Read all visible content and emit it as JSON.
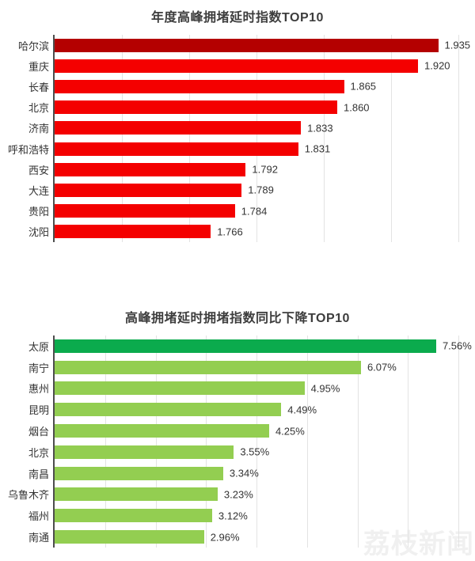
{
  "watermark": "荔枝新闻",
  "chart_data": [
    {
      "type": "bar",
      "orientation": "horizontal",
      "title": "年度高峰拥堵延时指数TOP10",
      "categories": [
        "哈尔滨",
        "重庆",
        "长春",
        "北京",
        "济南",
        "呼和浩特",
        "西安",
        "大连",
        "贵阳",
        "沈阳"
      ],
      "values": [
        1.935,
        1.92,
        1.865,
        1.86,
        1.833,
        1.831,
        1.792,
        1.789,
        1.784,
        1.766
      ],
      "value_labels": [
        "1.935",
        "1.920",
        "1.865",
        "1.860",
        "1.833",
        "1.831",
        "1.792",
        "1.789",
        "1.784",
        "1.766"
      ],
      "xlabel": "",
      "ylabel": "",
      "xlim": [
        1.65,
        1.95
      ],
      "grid_step": 0.05,
      "grid": true,
      "legend": false,
      "bar_color": "#f40000",
      "highlight_first_color": "#b40000",
      "axis_color": "#4d4d4d",
      "gridline_color": "#e3e3e3",
      "label_color": "#333333"
    },
    {
      "type": "bar",
      "orientation": "horizontal",
      "title": "高峰拥堵延时拥堵指数同比下降TOP10",
      "categories": [
        "太原",
        "南宁",
        "惠州",
        "昆明",
        "烟台",
        "北京",
        "南昌",
        "乌鲁木齐",
        "福州",
        "南通"
      ],
      "values": [
        7.56,
        6.07,
        4.95,
        4.49,
        4.25,
        3.55,
        3.34,
        3.23,
        3.12,
        2.96
      ],
      "value_labels": [
        "7.56%",
        "6.07%",
        "4.95%",
        "4.49%",
        "4.25%",
        "3.55%",
        "3.34%",
        "3.23%",
        "3.12%",
        "2.96%"
      ],
      "xlabel": "",
      "ylabel": "",
      "xlim": [
        0,
        8
      ],
      "grid_step": 1,
      "grid": true,
      "legend": false,
      "bar_color": "#93ce51",
      "highlight_first_color": "#0bab4d",
      "axis_color": "#4d4d4d",
      "gridline_color": "#e3e3e3",
      "label_color": "#333333"
    }
  ]
}
